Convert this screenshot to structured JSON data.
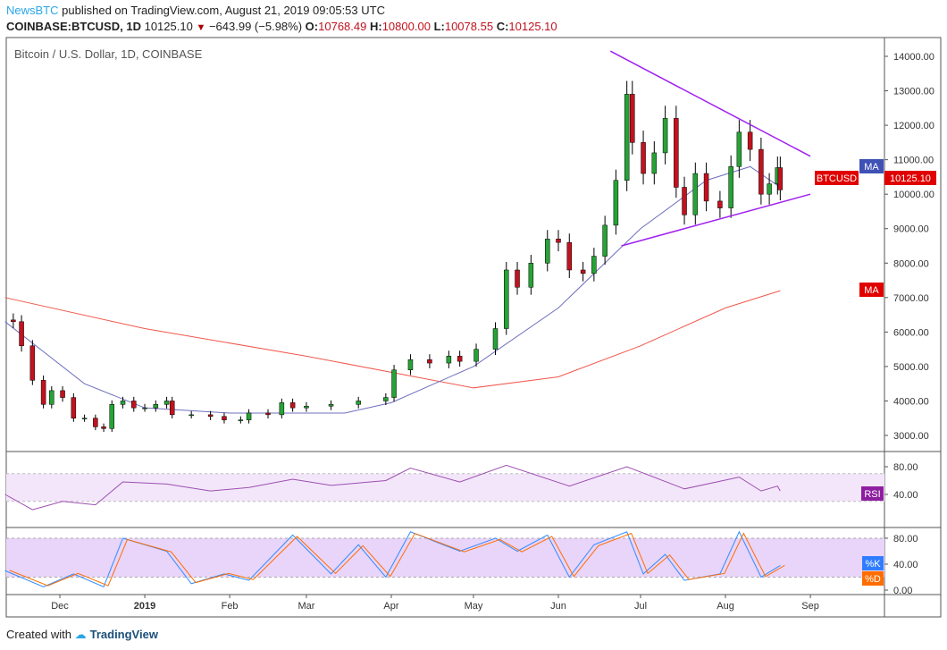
{
  "header": {
    "brand": "NewsBTC",
    "published": "published on TradingView.com, August 21, 2019 09:05:53 UTC",
    "symbol": "COINBASE:BTCUSD, 1D",
    "last": "10125.10",
    "change": "−643.99 (−5.98%)",
    "o_label": "O:",
    "o": "10768.49",
    "h_label": "H:",
    "h": "10800.00",
    "l_label": "L:",
    "l": "10078.55",
    "c_label": "C:",
    "c": "10125.10"
  },
  "footer": {
    "created": "Created with",
    "tv": "TradingView"
  },
  "colors": {
    "up": "#26a336",
    "down": "#c1121f",
    "ma50": "#6f6fbf",
    "ma200": "#f0584e",
    "trend": "#a020f0",
    "rsi": "#9c4fb0",
    "k": "#2f8cff",
    "d": "#ff6d00"
  },
  "chart_data": [
    {
      "type": "candlestick",
      "title": "Bitcoin / U.S. Dollar, 1D, COINBASE",
      "ylim": [
        2700,
        14500
      ],
      "yticks": [
        "14000.00",
        "13000.00",
        "12000.00",
        "11000.00",
        "10000.00",
        "9000.00",
        "8000.00",
        "7000.00",
        "6000.00",
        "5000.00",
        "4000.00",
        "3000.00"
      ],
      "xticks": [
        [
          "2018-12-01",
          "Dec"
        ],
        [
          "2019-01-01",
          "2019"
        ],
        [
          "2019-02-01",
          "Feb"
        ],
        [
          "2019-03-01",
          "Mar"
        ],
        [
          "2019-04-01",
          "Apr"
        ],
        [
          "2019-05-01",
          "May"
        ],
        [
          "2019-06-01",
          "Jun"
        ],
        [
          "2019-07-01",
          "Jul"
        ],
        [
          "2019-08-01",
          "Aug"
        ],
        [
          "2019-09-01",
          "Sep"
        ]
      ],
      "closes": [
        [
          "2018-11-11",
          6350
        ],
        [
          "2018-11-14",
          6300
        ],
        [
          "2018-11-17",
          5600
        ],
        [
          "2018-11-21",
          4600
        ],
        [
          "2018-11-25",
          3900
        ],
        [
          "2018-11-28",
          4300
        ],
        [
          "2018-12-02",
          4100
        ],
        [
          "2018-12-06",
          3500
        ],
        [
          "2018-12-10",
          3500
        ],
        [
          "2018-12-14",
          3250
        ],
        [
          "2018-12-17",
          3200
        ],
        [
          "2018-12-20",
          3900
        ],
        [
          "2018-12-24",
          4000
        ],
        [
          "2018-12-28",
          3800
        ],
        [
          "2019-01-01",
          3800
        ],
        [
          "2019-01-05",
          3900
        ],
        [
          "2019-01-09",
          4000
        ],
        [
          "2019-01-11",
          3600
        ],
        [
          "2019-01-18",
          3600
        ],
        [
          "2019-01-25",
          3550
        ],
        [
          "2019-01-30",
          3450
        ],
        [
          "2019-02-05",
          3450
        ],
        [
          "2019-02-08",
          3650
        ],
        [
          "2019-02-15",
          3600
        ],
        [
          "2019-02-20",
          3950
        ],
        [
          "2019-02-24",
          3800
        ],
        [
          "2019-03-01",
          3850
        ],
        [
          "2019-03-10",
          3900
        ],
        [
          "2019-03-20",
          4000
        ],
        [
          "2019-03-30",
          4100
        ],
        [
          "2019-04-02",
          4900
        ],
        [
          "2019-04-08",
          5200
        ],
        [
          "2019-04-15",
          5100
        ],
        [
          "2019-04-22",
          5300
        ],
        [
          "2019-04-26",
          5150
        ],
        [
          "2019-05-02",
          5500
        ],
        [
          "2019-05-09",
          6100
        ],
        [
          "2019-05-13",
          7800
        ],
        [
          "2019-05-17",
          7300
        ],
        [
          "2019-05-22",
          8000
        ],
        [
          "2019-05-28",
          8700
        ],
        [
          "2019-06-01",
          8600
        ],
        [
          "2019-06-05",
          7800
        ],
        [
          "2019-06-10",
          7700
        ],
        [
          "2019-06-14",
          8200
        ],
        [
          "2019-06-18",
          9100
        ],
        [
          "2019-06-22",
          10400
        ],
        [
          "2019-06-26",
          12900
        ],
        [
          "2019-06-28",
          11500
        ],
        [
          "2019-07-02",
          10600
        ],
        [
          "2019-07-06",
          11200
        ],
        [
          "2019-07-10",
          12200
        ],
        [
          "2019-07-14",
          10200
        ],
        [
          "2019-07-17",
          9400
        ],
        [
          "2019-07-21",
          10600
        ],
        [
          "2019-07-25",
          9800
        ],
        [
          "2019-07-30",
          9600
        ],
        [
          "2019-08-03",
          10800
        ],
        [
          "2019-08-06",
          11800
        ],
        [
          "2019-08-10",
          11300
        ],
        [
          "2019-08-14",
          10000
        ],
        [
          "2019-08-17",
          10300
        ],
        [
          "2019-08-20",
          10769
        ],
        [
          "2019-08-21",
          10125
        ]
      ],
      "ma50": [
        [
          "2018-11-11",
          6300
        ],
        [
          "2018-12-10",
          4500
        ],
        [
          "2019-01-01",
          3800
        ],
        [
          "2019-02-01",
          3650
        ],
        [
          "2019-03-15",
          3650
        ],
        [
          "2019-04-01",
          3950
        ],
        [
          "2019-05-01",
          5000
        ],
        [
          "2019-06-01",
          6700
        ],
        [
          "2019-07-01",
          9000
        ],
        [
          "2019-07-25",
          10400
        ],
        [
          "2019-08-10",
          10800
        ],
        [
          "2019-08-21",
          10200
        ]
      ],
      "ma200": [
        [
          "2018-11-11",
          7000
        ],
        [
          "2019-01-01",
          6100
        ],
        [
          "2019-03-01",
          5300
        ],
        [
          "2019-05-01",
          4380
        ],
        [
          "2019-06-01",
          4700
        ],
        [
          "2019-07-01",
          5600
        ],
        [
          "2019-08-01",
          6700
        ],
        [
          "2019-08-21",
          7200
        ]
      ],
      "trendlines": [
        [
          [
            "2019-06-20",
            14150
          ],
          [
            "2019-09-01",
            11100
          ]
        ],
        [
          [
            "2019-06-24",
            8500
          ],
          [
            "2019-09-01",
            10000
          ]
        ]
      ],
      "labels": {
        "ma": "MA",
        "btc": "BTCUSD",
        "btc_value": "10125.10",
        "ma2": "MA"
      }
    },
    {
      "type": "line",
      "name": "RSI",
      "ylim": [
        10,
        100
      ],
      "band": [
        30,
        70
      ],
      "yticks": [
        "80.00",
        "40.00"
      ],
      "label": "RSI",
      "values": [
        [
          "2018-11-11",
          40
        ],
        [
          "2018-11-21",
          18
        ],
        [
          "2018-12-02",
          30
        ],
        [
          "2018-12-14",
          25
        ],
        [
          "2018-12-24",
          58
        ],
        [
          "2019-01-09",
          55
        ],
        [
          "2019-01-25",
          45
        ],
        [
          "2019-02-08",
          50
        ],
        [
          "2019-02-24",
          62
        ],
        [
          "2019-03-10",
          53
        ],
        [
          "2019-03-30",
          60
        ],
        [
          "2019-04-08",
          78
        ],
        [
          "2019-04-26",
          58
        ],
        [
          "2019-05-13",
          82
        ],
        [
          "2019-06-05",
          52
        ],
        [
          "2019-06-26",
          80
        ],
        [
          "2019-07-17",
          48
        ],
        [
          "2019-08-06",
          65
        ],
        [
          "2019-08-14",
          45
        ],
        [
          "2019-08-20",
          52
        ],
        [
          "2019-08-21",
          45
        ]
      ]
    },
    {
      "type": "line",
      "name": "Stoch",
      "ylim": [
        -2,
        100
      ],
      "band": [
        20,
        80
      ],
      "yticks": [
        "80.00",
        "40.00",
        "0.00"
      ],
      "labels": [
        "%K",
        "%D"
      ],
      "values": [
        [
          "2018-11-11",
          30
        ],
        [
          "2018-11-25",
          5
        ],
        [
          "2018-12-06",
          25
        ],
        [
          "2018-12-17",
          5
        ],
        [
          "2018-12-24",
          80
        ],
        [
          "2019-01-09",
          60
        ],
        [
          "2019-01-18",
          10
        ],
        [
          "2019-01-30",
          25
        ],
        [
          "2019-02-08",
          15
        ],
        [
          "2019-02-24",
          85
        ],
        [
          "2019-03-10",
          25
        ],
        [
          "2019-03-20",
          70
        ],
        [
          "2019-03-30",
          20
        ],
        [
          "2019-04-08",
          90
        ],
        [
          "2019-04-26",
          60
        ],
        [
          "2019-05-09",
          80
        ],
        [
          "2019-05-17",
          60
        ],
        [
          "2019-05-28",
          85
        ],
        [
          "2019-06-05",
          20
        ],
        [
          "2019-06-14",
          70
        ],
        [
          "2019-06-26",
          90
        ],
        [
          "2019-07-02",
          25
        ],
        [
          "2019-07-10",
          55
        ],
        [
          "2019-07-17",
          15
        ],
        [
          "2019-07-30",
          25
        ],
        [
          "2019-08-06",
          90
        ],
        [
          "2019-08-14",
          20
        ],
        [
          "2019-08-21",
          38
        ]
      ]
    }
  ]
}
